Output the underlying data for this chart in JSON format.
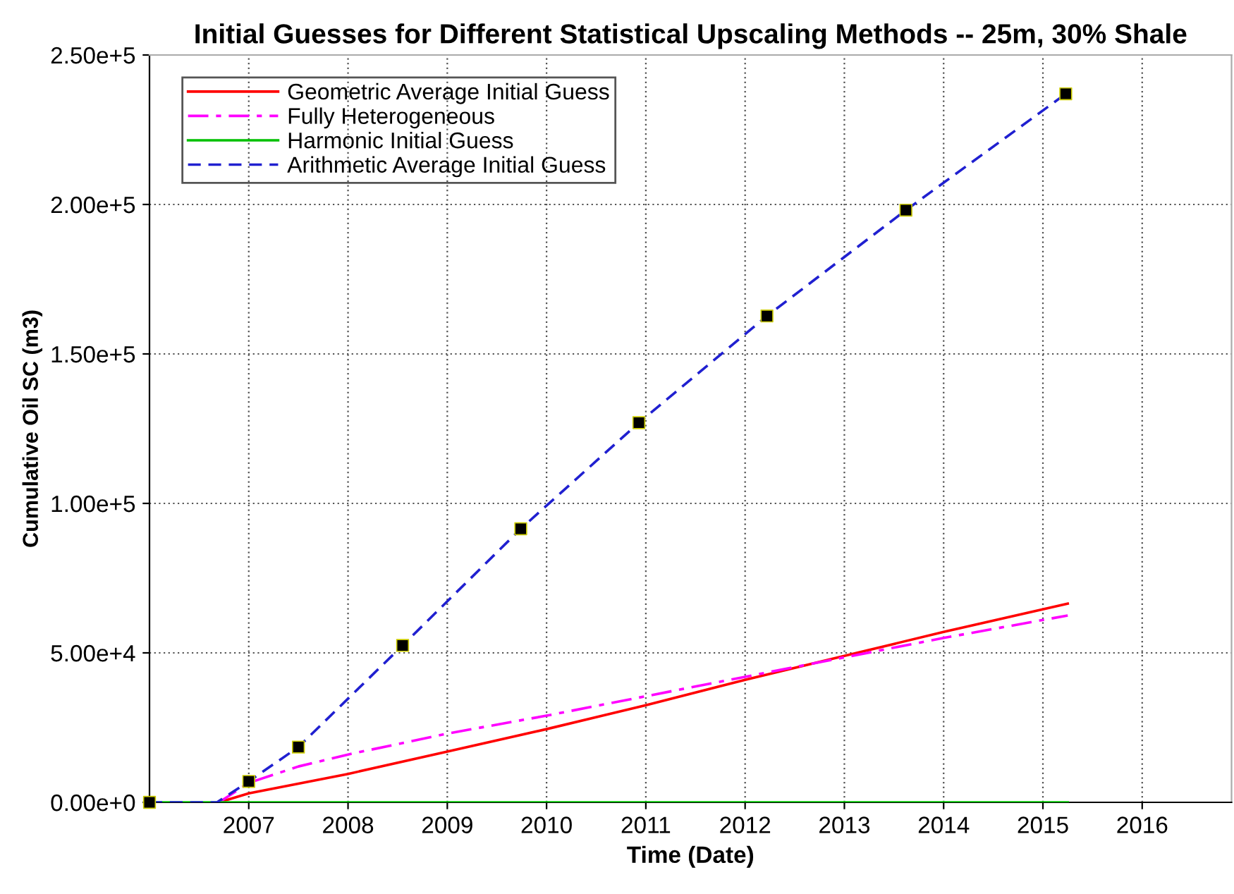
{
  "chart_data": {
    "type": "line",
    "title": "Initial Guesses for Different Statistical Upscaling Methods -- 25m, 30% Shale",
    "xlabel": "Time (Date)",
    "ylabel": "Cumulative Oil SC (m3)",
    "series": [
      {
        "name": "Geometric Average Initial Guess",
        "color": "#ff0000",
        "line_style": "solid",
        "x": [
          2006.7,
          2007,
          2008,
          2009,
          2010,
          2011,
          2012,
          2013,
          2014,
          2015.25
        ],
        "values": [
          0,
          3000,
          9500,
          17000,
          24500,
          32500,
          41000,
          49000,
          57000,
          66500
        ]
      },
      {
        "name": "Fully Heterogeneous",
        "color": "#ff00ff",
        "line_style": "dashdot",
        "x": [
          2006.7,
          2007,
          2007.5,
          2008,
          2009,
          2010,
          2011,
          2012,
          2013,
          2014,
          2015.25
        ],
        "values": [
          0,
          6500,
          12000,
          16000,
          23000,
          29000,
          35500,
          42000,
          48500,
          55000,
          62500
        ]
      },
      {
        "name": "Harmonic Initial Guess",
        "color": "#00c000",
        "line_style": "solid",
        "x": [
          2006.0,
          2015.25
        ],
        "values": [
          0,
          0
        ]
      },
      {
        "name": "Arithmetic Average Initial Guess",
        "color": "#2020d0",
        "line_style": "dashed",
        "x": [
          2006.0,
          2006.68,
          2007.0,
          2007.5,
          2008.55,
          2009.74,
          2010.93,
          2012.22,
          2013.62,
          2015.23
        ],
        "values": [
          0,
          0,
          7000,
          18500,
          52500,
          91500,
          127000,
          162700,
          198100,
          237000
        ]
      },
      {
        "type": "scatter",
        "marker": "square",
        "color": "#000000",
        "x": [
          2006.0,
          2007.0,
          2007.5,
          2008.55,
          2009.74,
          2010.93,
          2012.22,
          2013.62,
          2015.23
        ],
        "values": [
          0,
          7000,
          18500,
          52500,
          91500,
          127000,
          162700,
          198100,
          237000
        ]
      }
    ],
    "xlim": [
      2006.0,
      2016.9
    ],
    "xticks": [
      2007,
      2008,
      2009,
      2010,
      2011,
      2012,
      2013,
      2014,
      2015,
      2016
    ],
    "ylim": [
      0,
      250000
    ],
    "yticks": [
      {
        "value": 0,
        "label": "0.00e+0"
      },
      {
        "value": 50000,
        "label": "5.00e+4"
      },
      {
        "value": 100000,
        "label": "1.00e+5"
      },
      {
        "value": 150000,
        "label": "1.50e+5"
      },
      {
        "value": 200000,
        "label": "2.00e+5"
      },
      {
        "value": 250000,
        "label": "2.50e+5"
      }
    ],
    "grid": true,
    "legend": "top left"
  }
}
